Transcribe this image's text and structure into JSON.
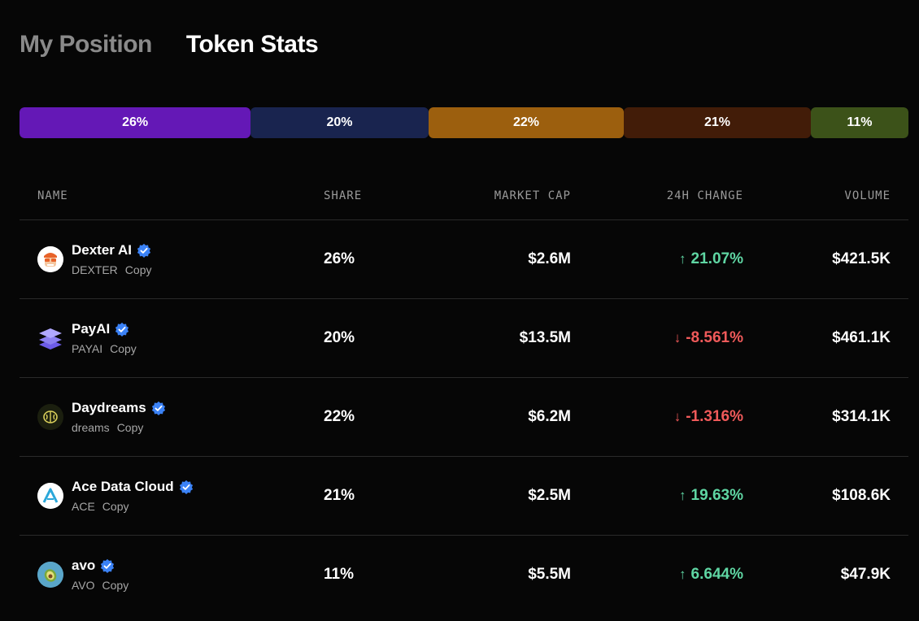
{
  "tabs": [
    {
      "label": "My Position",
      "active": false
    },
    {
      "label": "Token Stats",
      "active": true
    }
  ],
  "share_bar": [
    {
      "label": "26%",
      "value": 26,
      "color": "#6418b6"
    },
    {
      "label": "20%",
      "value": 20,
      "color": "#19244f"
    },
    {
      "label": "22%",
      "value": 22,
      "color": "#9c5f0e"
    },
    {
      "label": "21%",
      "value": 21,
      "color": "#421c08"
    },
    {
      "label": "11%",
      "value": 11,
      "color": "#3c5219"
    }
  ],
  "table": {
    "headers": {
      "name": "NAME",
      "share": "SHARE",
      "market_cap": "MARKET CAP",
      "change": "24H CHANGE",
      "volume": "VOLUME"
    },
    "copy_label": "Copy",
    "rows": [
      {
        "name": "Dexter AI",
        "ticker": "DEXTER",
        "share": "26%",
        "market_cap": "$2.6M",
        "change": "21.07%",
        "direction": "up",
        "volume": "$421.5K",
        "icon": "dexter-logo-icon"
      },
      {
        "name": "PayAI",
        "ticker": "PAYAI",
        "share": "20%",
        "market_cap": "$13.5M",
        "change": "-8.561%",
        "direction": "down",
        "volume": "$461.1K",
        "icon": "payai-logo-icon"
      },
      {
        "name": "Daydreams",
        "ticker": "dreams",
        "share": "22%",
        "market_cap": "$6.2M",
        "change": "-1.316%",
        "direction": "down",
        "volume": "$314.1K",
        "icon": "daydreams-logo-icon"
      },
      {
        "name": "Ace Data Cloud",
        "ticker": "ACE",
        "share": "21%",
        "market_cap": "$2.5M",
        "change": "19.63%",
        "direction": "up",
        "volume": "$108.6K",
        "icon": "ace-logo-icon"
      },
      {
        "name": "avo",
        "ticker": "AVO",
        "share": "11%",
        "market_cap": "$5.5M",
        "change": "6.644%",
        "direction": "up",
        "volume": "$47.9K",
        "icon": "avo-logo-icon"
      }
    ]
  },
  "colors": {
    "up": "#5fd6a3",
    "down": "#f05a5a",
    "verified": "#3b82f6"
  }
}
